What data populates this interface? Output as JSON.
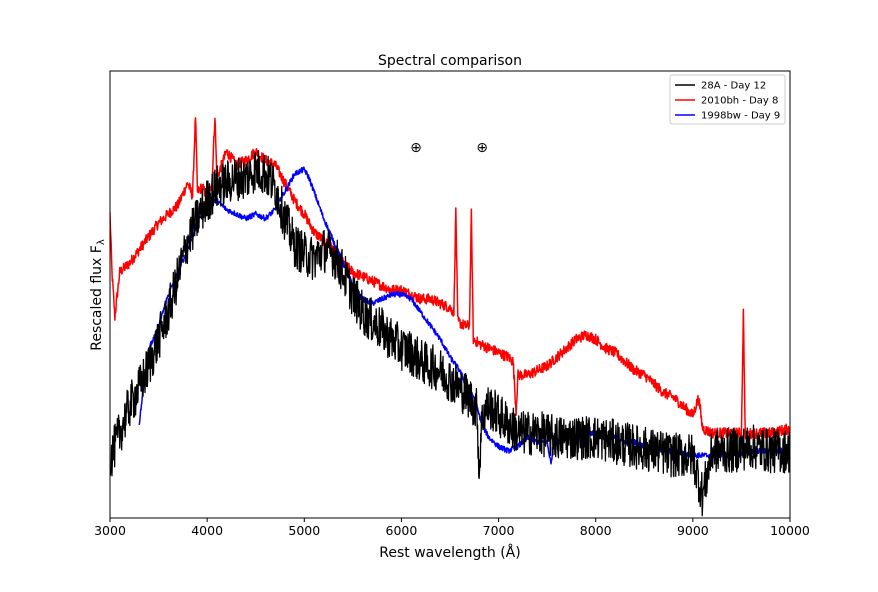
{
  "chart_data": {
    "type": "line",
    "title": "Spectral comparison",
    "xlabel": "Rest wavelength (Å)",
    "ylabel": "Rescaled flux F",
    "ylabel_subscript": "λ",
    "xlim": [
      3000,
      10000
    ],
    "ylim": [
      0,
      1
    ],
    "x_ticks": [
      3000,
      4000,
      5000,
      6000,
      7000,
      8000,
      9000,
      10000
    ],
    "y_ticks_shown": false,
    "grid": false,
    "legend_position": "top-right",
    "annotations": [
      {
        "text": "⊕",
        "x": 6150,
        "y": 0.83
      },
      {
        "text": "⊕",
        "x": 6830,
        "y": 0.83
      }
    ],
    "series": [
      {
        "name": "28A - Day 12",
        "color": "#000000",
        "noise": 0.05,
        "x": [
          3000,
          3100,
          3200,
          3300,
          3400,
          3500,
          3600,
          3700,
          3800,
          3900,
          4000,
          4100,
          4200,
          4300,
          4400,
          4500,
          4600,
          4700,
          4800,
          4900,
          5000,
          5100,
          5200,
          5300,
          5400,
          5500,
          5600,
          5700,
          5800,
          5900,
          6000,
          6100,
          6200,
          6300,
          6400,
          6500,
          6600,
          6700,
          6780,
          6800,
          6820,
          6850,
          6900,
          7000,
          7200,
          7400,
          7600,
          7800,
          8000,
          8200,
          8400,
          8600,
          8800,
          9000,
          9100,
          9200,
          9400,
          9600,
          9800,
          10000
        ],
        "y": [
          0.13,
          0.19,
          0.25,
          0.29,
          0.34,
          0.4,
          0.46,
          0.54,
          0.62,
          0.67,
          0.71,
          0.74,
          0.75,
          0.76,
          0.76,
          0.78,
          0.77,
          0.74,
          0.67,
          0.61,
          0.59,
          0.58,
          0.6,
          0.59,
          0.55,
          0.5,
          0.46,
          0.44,
          0.42,
          0.4,
          0.38,
          0.37,
          0.35,
          0.34,
          0.33,
          0.31,
          0.29,
          0.27,
          0.24,
          0.09,
          0.2,
          0.24,
          0.25,
          0.23,
          0.19,
          0.19,
          0.18,
          0.18,
          0.18,
          0.17,
          0.16,
          0.15,
          0.14,
          0.14,
          0.05,
          0.15,
          0.15,
          0.16,
          0.15,
          0.15
        ]
      },
      {
        "name": "2010bh - Day 8",
        "color": "#ff0000",
        "noise": 0.012,
        "x": [
          3000,
          3020,
          3050,
          3100,
          3200,
          3300,
          3400,
          3500,
          3600,
          3700,
          3800,
          3850,
          3880,
          3900,
          3950,
          4000,
          4050,
          4080,
          4100,
          4150,
          4200,
          4300,
          4400,
          4500,
          4600,
          4700,
          4800,
          4900,
          5000,
          5100,
          5200,
          5300,
          5400,
          5500,
          5600,
          5700,
          5800,
          5900,
          6000,
          6100,
          6200,
          6300,
          6400,
          6500,
          6540,
          6560,
          6580,
          6650,
          6700,
          6720,
          6740,
          6800,
          7000,
          7100,
          7150,
          7180,
          7200,
          7300,
          7400,
          7500,
          7600,
          7700,
          7800,
          7900,
          8000,
          8100,
          8200,
          8300,
          8400,
          8500,
          8600,
          8700,
          8800,
          8900,
          9000,
          9060,
          9100,
          9200,
          9400,
          9500,
          9520,
          9540,
          9600,
          9800,
          10000
        ],
        "y": [
          0.68,
          0.55,
          0.45,
          0.55,
          0.57,
          0.6,
          0.63,
          0.66,
          0.68,
          0.7,
          0.75,
          0.72,
          0.9,
          0.73,
          0.74,
          0.72,
          0.75,
          0.9,
          0.76,
          0.79,
          0.82,
          0.79,
          0.8,
          0.82,
          0.8,
          0.79,
          0.75,
          0.71,
          0.68,
          0.64,
          0.62,
          0.6,
          0.57,
          0.55,
          0.54,
          0.53,
          0.52,
          0.51,
          0.51,
          0.5,
          0.49,
          0.49,
          0.48,
          0.47,
          0.46,
          0.69,
          0.44,
          0.43,
          0.43,
          0.68,
          0.4,
          0.39,
          0.37,
          0.36,
          0.35,
          0.24,
          0.32,
          0.32,
          0.33,
          0.34,
          0.36,
          0.38,
          0.4,
          0.41,
          0.4,
          0.38,
          0.37,
          0.35,
          0.33,
          0.32,
          0.3,
          0.28,
          0.27,
          0.25,
          0.23,
          0.27,
          0.2,
          0.19,
          0.19,
          0.19,
          0.46,
          0.18,
          0.19,
          0.19,
          0.2
        ]
      },
      {
        "name": "1998bw - Day 9",
        "color": "#0000ff",
        "noise": 0.006,
        "x": [
          3300,
          3350,
          3400,
          3450,
          3500,
          3600,
          3700,
          3800,
          3900,
          4000,
          4100,
          4200,
          4300,
          4400,
          4500,
          4600,
          4700,
          4800,
          4900,
          5000,
          5050,
          5100,
          5200,
          5300,
          5400,
          5500,
          5600,
          5700,
          5800,
          5900,
          6000,
          6100,
          6200,
          6300,
          6400,
          6500,
          6600,
          6700,
          6750,
          6800,
          6850,
          6900,
          7000,
          7100,
          7200,
          7300,
          7400,
          7500,
          7540,
          7560,
          7600,
          7700,
          7800,
          7900,
          8000,
          8100,
          8200,
          8300,
          8400,
          8500,
          8600,
          8700,
          8800,
          9000,
          9200,
          9400,
          9600,
          9800,
          10000
        ],
        "y": [
          0.21,
          0.3,
          0.38,
          0.4,
          0.43,
          0.5,
          0.55,
          0.6,
          0.66,
          0.71,
          0.71,
          0.69,
          0.68,
          0.67,
          0.68,
          0.67,
          0.69,
          0.73,
          0.77,
          0.78,
          0.76,
          0.73,
          0.67,
          0.62,
          0.57,
          0.52,
          0.49,
          0.48,
          0.49,
          0.5,
          0.5,
          0.49,
          0.46,
          0.43,
          0.4,
          0.36,
          0.33,
          0.28,
          0.27,
          0.23,
          0.2,
          0.18,
          0.16,
          0.15,
          0.16,
          0.18,
          0.17,
          0.17,
          0.12,
          0.16,
          0.17,
          0.18,
          0.18,
          0.19,
          0.19,
          0.18,
          0.18,
          0.17,
          0.17,
          0.16,
          0.16,
          0.15,
          0.15,
          0.14,
          0.14,
          0.14,
          0.15,
          0.15,
          0.15
        ]
      }
    ]
  }
}
